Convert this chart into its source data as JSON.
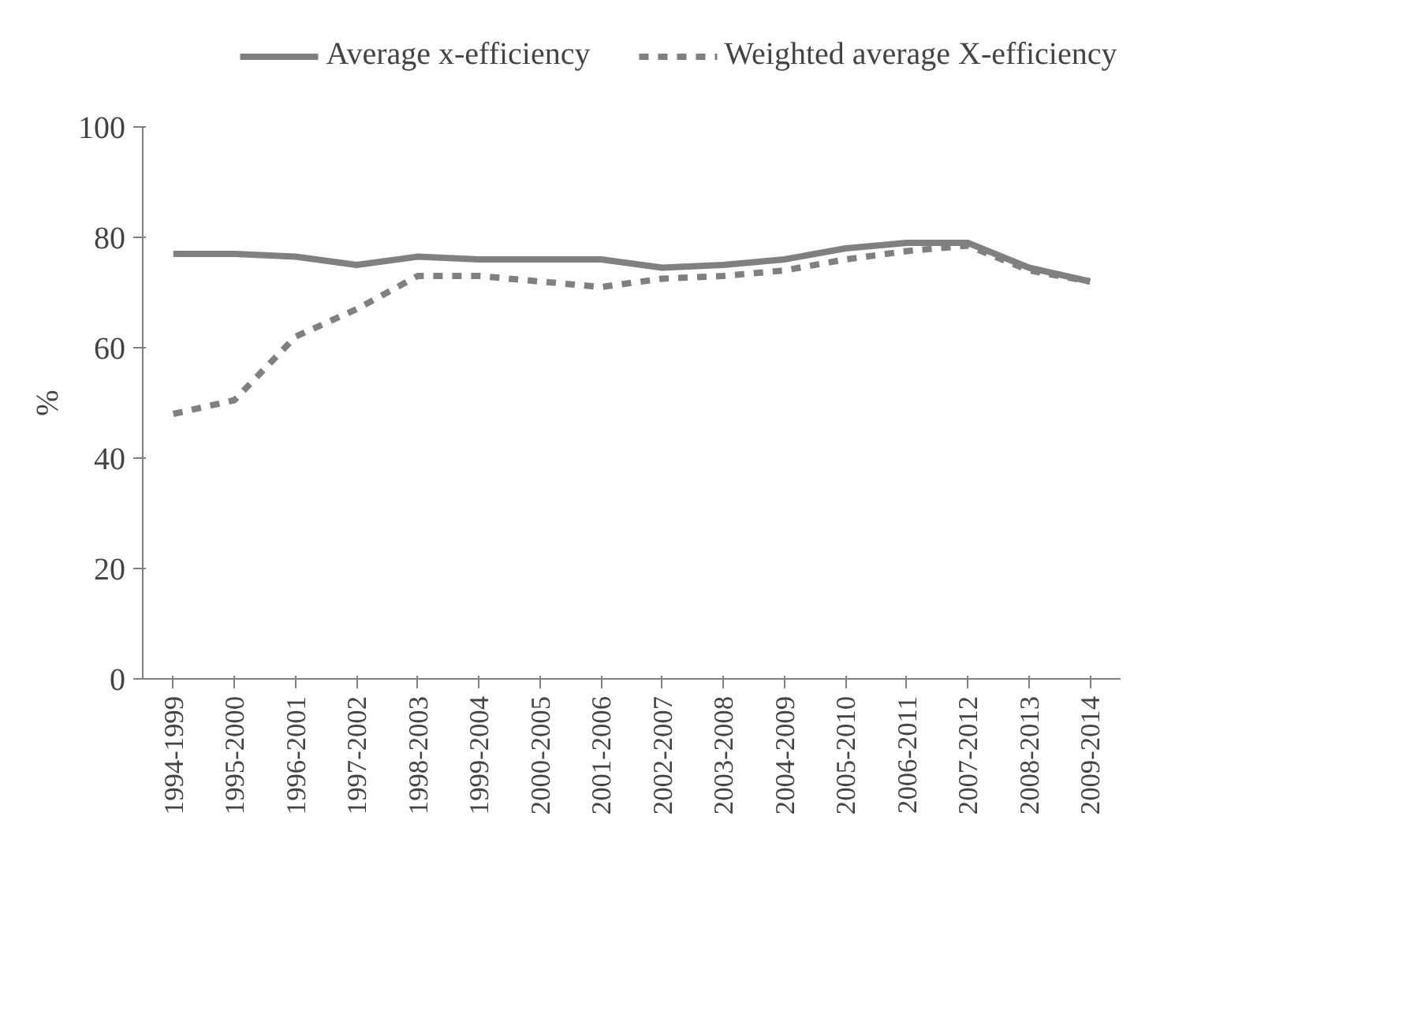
{
  "chart_data": {
    "type": "line",
    "ylabel": "%",
    "categories": [
      "1994-1999",
      "1995-2000",
      "1996-2001",
      "1997-2002",
      "1998-2003",
      "1999-2004",
      "2000-2005",
      "2001-2006",
      "2002-2007",
      "2003-2008",
      "2004-2009",
      "2005-2010",
      "2006-2011",
      "2007-2012",
      "2008-2013",
      "2009-2014"
    ],
    "series": [
      {
        "name": "Average x-efficiency",
        "color": "#808080",
        "line_style": "solid",
        "values": [
          77,
          77,
          76.5,
          75,
          76.5,
          76,
          76,
          76,
          74.5,
          75,
          76,
          78,
          79,
          79,
          74.5,
          72
        ]
      },
      {
        "name": "Weighted average X-efficiency",
        "color": "#808080",
        "line_style": "dashed",
        "values": [
          48,
          50.5,
          62,
          67,
          73,
          73,
          72,
          71,
          72.5,
          73,
          74,
          76,
          77.5,
          78.5,
          74,
          72
        ]
      }
    ],
    "ylim": [
      0,
      100
    ],
    "yticks": [
      0,
      20,
      40,
      60,
      80,
      100
    ],
    "grid": false,
    "legend": "top",
    "marker": "none"
  }
}
